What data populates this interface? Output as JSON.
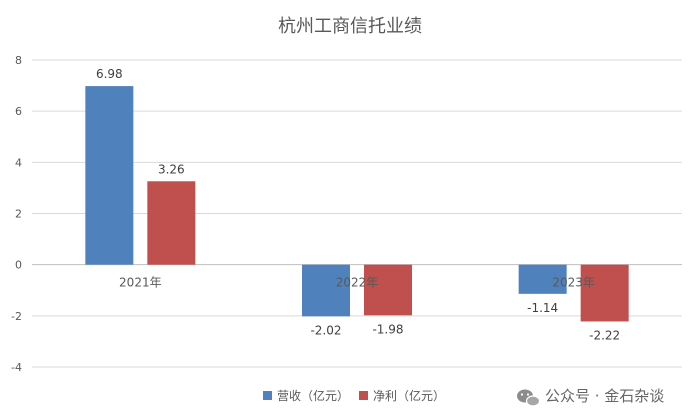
{
  "chart_data": {
    "type": "bar",
    "title": "杭州工商信托业绩",
    "categories": [
      "2021年",
      "2022年",
      "2023年"
    ],
    "series": [
      {
        "name": "营收（亿元）",
        "color": "#4F81BD",
        "values": [
          6.98,
          -2.02,
          -1.14
        ]
      },
      {
        "name": "净利（亿元）",
        "color": "#C0504D",
        "values": [
          3.26,
          -1.98,
          -2.22
        ]
      }
    ],
    "yticks": [
      8,
      6,
      4,
      2,
      0,
      -2,
      -4
    ],
    "ylim": [
      -4,
      8
    ],
    "grid": true,
    "legend": "bottom"
  },
  "watermark": {
    "icon": "wechat-icon",
    "text": "公众号 · 金石杂谈"
  }
}
